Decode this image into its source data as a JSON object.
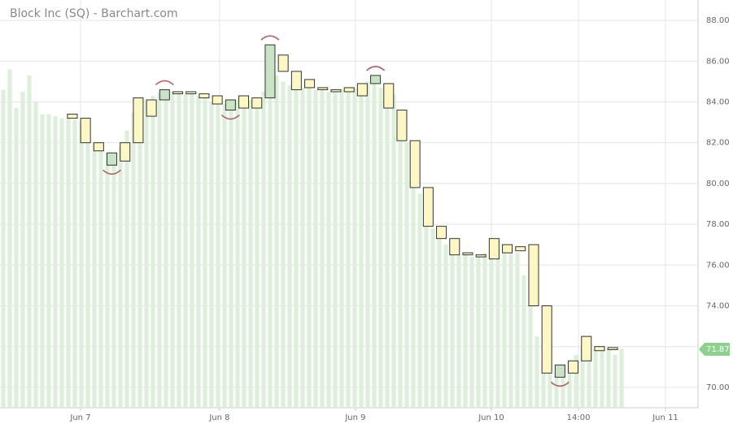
{
  "chart_data": {
    "type": "candlebox",
    "title": "Block Inc (SQ) - Barchart.com",
    "ylim": [
      69,
      89
    ],
    "yticks": [
      {
        "value": 70,
        "label": "70.00"
      },
      {
        "value": 72,
        "label": "72.00"
      },
      {
        "value": 74,
        "label": "74.00"
      },
      {
        "value": 76,
        "label": "76.00"
      },
      {
        "value": 78,
        "label": "78.00"
      },
      {
        "value": 80,
        "label": "80.00"
      },
      {
        "value": 82,
        "label": "82.00"
      },
      {
        "value": 84,
        "label": "84.00"
      },
      {
        "value": 86,
        "label": "86.00"
      },
      {
        "value": 88,
        "label": "88.00"
      }
    ],
    "xlim": [
      -5.49,
      47.47
    ],
    "xticks": [
      {
        "value": 0.62,
        "label": "Jun 7"
      },
      {
        "value": 11.17,
        "label": "Jun 8"
      },
      {
        "value": 21.48,
        "label": "Jun 9"
      },
      {
        "value": 31.79,
        "label": "Jun 10"
      },
      {
        "value": 38.4,
        "label": "14:00"
      },
      {
        "value": 45.0,
        "label": "Jun 11"
      }
    ],
    "grid": true,
    "x": [
      0,
      1,
      2,
      3,
      4,
      5,
      6,
      7,
      8,
      9,
      10,
      11,
      12,
      13,
      14,
      15,
      16,
      17,
      18,
      19,
      20,
      21,
      22,
      23,
      24,
      25,
      26,
      27,
      28,
      29,
      30,
      31,
      32,
      33,
      34,
      35,
      36,
      37,
      38,
      39,
      40,
      41
    ],
    "open": [
      83.4,
      83.2,
      82.0,
      81.5,
      81.1,
      82.0,
      83.3,
      84.1,
      84.5,
      84.5,
      84.4,
      84.3,
      84.1,
      83.7,
      83.7,
      84.2,
      86.3,
      85.5,
      85.1,
      84.7,
      84.6,
      84.5,
      84.3,
      84.9,
      84.9,
      83.6,
      82.1,
      79.8,
      77.9,
      77.3,
      76.6,
      76.5,
      76.3,
      77.0,
      76.9,
      77.0,
      74.0,
      70.5,
      70.7,
      71.3,
      72.0,
      71.95
    ],
    "close": [
      83.2,
      82.0,
      81.6,
      80.9,
      82.0,
      84.2,
      84.1,
      84.6,
      84.4,
      84.4,
      84.2,
      83.9,
      83.6,
      84.3,
      84.2,
      86.8,
      85.5,
      84.6,
      84.7,
      84.6,
      84.5,
      84.7,
      84.9,
      85.3,
      83.7,
      82.1,
      79.8,
      77.9,
      77.3,
      76.5,
      76.5,
      76.4,
      77.3,
      76.6,
      76.7,
      74.0,
      70.7,
      71.1,
      71.3,
      72.5,
      71.8,
      71.85
    ],
    "colors": [
      "#fdf7c6",
      "#fdf7c6",
      "#fdf7c6",
      "#c9e4c5",
      "#fdf7c6",
      "#fdf7c6",
      "#fdf7c6",
      "#c9e4c5",
      "#fdf7c6",
      "#fdf7c6",
      "#fdf7c6",
      "#fdf7c6",
      "#c9e4c5",
      "#fdf7c6",
      "#fdf7c6",
      "#c9e4c5",
      "#fdf7c6",
      "#fdf7c6",
      "#fdf7c6",
      "#fdf7c6",
      "#fdf7c6",
      "#fdf7c6",
      "#fdf7c6",
      "#c9e4c5",
      "#fdf7c6",
      "#fdf7c6",
      "#fdf7c6",
      "#fdf7c6",
      "#fdf7c6",
      "#fdf7c6",
      "#fdf7c6",
      "#fdf7c6",
      "#fdf7c6",
      "#fdf7c6",
      "#fdf7c6",
      "#fdf7c6",
      "#fdf7c6",
      "#c9e4c5",
      "#fdf7c6",
      "#fdf7c6",
      "#fdf7c6",
      "#fdf7c6"
    ],
    "background_values": [
      84.6,
      85.6,
      83.7,
      84.5,
      85.3,
      84.0,
      83.4,
      83.4,
      83.3,
      83.2,
      83.2,
      83.1,
      83.0,
      82.4,
      82.0,
      81.8,
      81.5,
      81.3,
      81.8,
      82.6,
      83.5,
      84.0,
      84.1,
      84.3,
      84.5,
      84.5,
      84.5,
      84.5,
      84.4,
      84.4,
      84.3,
      84.2,
      84.0,
      83.9,
      83.9,
      84.0,
      84.1,
      84.2,
      84.1,
      84.2,
      84.5,
      85.0,
      85.3,
      85.0,
      84.8,
      84.7,
      84.7,
      84.7,
      84.6,
      84.6,
      84.5,
      84.5,
      84.6,
      84.6,
      84.7,
      84.8,
      85.0,
      85.1,
      84.7,
      84.2,
      84.4,
      83.0,
      82.0,
      80.5,
      79.5,
      78.5,
      77.8,
      77.4,
      77.0,
      76.6,
      76.5,
      76.5,
      76.4,
      76.4,
      76.6,
      76.8,
      76.8,
      76.7,
      76.7,
      76.6,
      75.5,
      74.5,
      72.5,
      71.2,
      70.8,
      70.8,
      71.0,
      71.2,
      71.6,
      72.0,
      72.1,
      71.9,
      71.8,
      71.9,
      71.6,
      71.9
    ],
    "background_color": "#dcefd8",
    "last_price": 71.87,
    "last_price_color": "#8fcf8f"
  }
}
